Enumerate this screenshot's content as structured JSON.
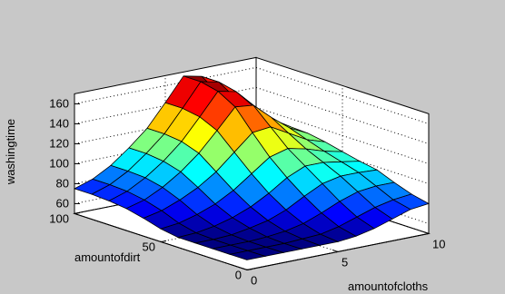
{
  "chart_data": {
    "type": "surface",
    "colormap": "jet",
    "grid": true,
    "xlabel": "amountofcloths",
    "ylabel": "amountofdirt",
    "zlabel": "washingtime",
    "xlim": [
      0,
      10
    ],
    "ylim": [
      0,
      100
    ],
    "zlim": [
      50,
      170
    ],
    "x_ticks": [
      "0",
      "5",
      "10"
    ],
    "y_ticks": [
      "0",
      "50",
      "100"
    ],
    "z_ticks": [
      "60",
      "80",
      "100",
      "120",
      "140",
      "160"
    ],
    "x": [
      0,
      1,
      2,
      3,
      4,
      5,
      6,
      7,
      8,
      9,
      10
    ],
    "y": [
      0,
      10,
      20,
      30,
      40,
      50,
      60,
      70,
      80,
      90,
      100
    ],
    "z": [
      [
        60,
        60,
        60,
        60,
        60,
        60,
        62,
        66,
        72,
        78,
        80
      ],
      [
        60,
        60,
        60,
        60,
        61,
        62,
        66,
        72,
        78,
        82,
        84
      ],
      [
        60,
        60,
        60,
        61,
        63,
        67,
        74,
        82,
        88,
        90,
        90
      ],
      [
        60,
        60,
        61,
        64,
        68,
        75,
        85,
        94,
        98,
        98,
        97
      ],
      [
        60,
        61,
        64,
        69,
        76,
        86,
        98,
        106,
        106,
        103,
        100
      ],
      [
        63,
        65,
        70,
        77,
        87,
        100,
        113,
        118,
        114,
        108,
        104
      ],
      [
        68,
        72,
        79,
        88,
        100,
        116,
        132,
        134,
        124,
        114,
        108
      ],
      [
        72,
        77,
        86,
        98,
        113,
        132,
        152,
        150,
        134,
        120,
        111
      ],
      [
        74,
        80,
        90,
        103,
        119,
        140,
        162,
        158,
        139,
        123,
        112
      ],
      [
        75,
        81,
        91,
        105,
        121,
        143,
        166,
        162,
        141,
        124,
        113
      ],
      [
        75,
        81,
        91,
        105,
        121,
        143,
        166,
        162,
        141,
        124,
        113
      ]
    ]
  }
}
